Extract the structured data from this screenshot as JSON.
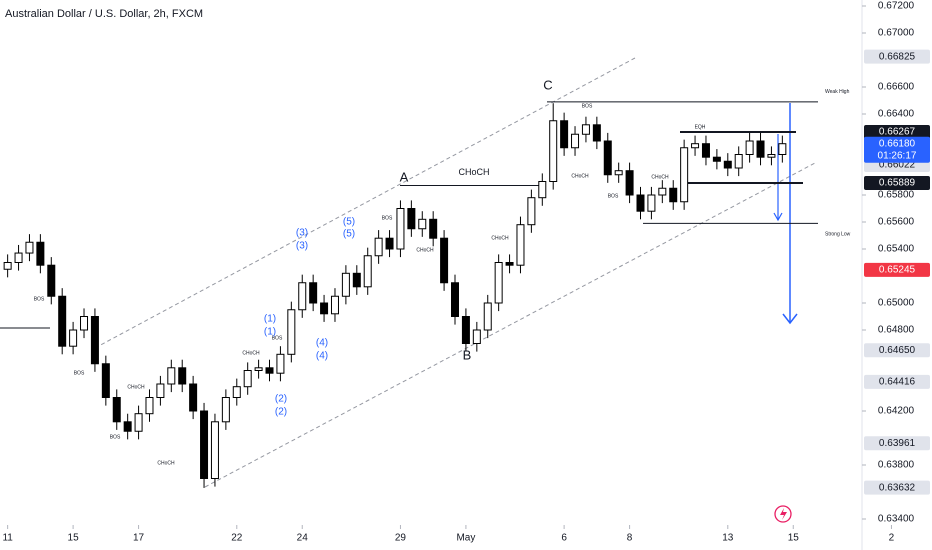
{
  "chart_data": {
    "type": "candlestick",
    "title": "Australian Dollar / U.S. Dollar, 2h, FXCM",
    "open": [
      0.6525,
      0.653,
      0.6537,
      0.6545,
      0.6528,
      0.6505,
      0.6468,
      0.648,
      0.649,
      0.6455,
      0.643,
      0.6412,
      0.6405,
      0.6418,
      0.643,
      0.644,
      0.6452,
      0.644,
      0.642,
      0.637,
      0.6412,
      0.643,
      0.6438,
      0.645,
      0.6452,
      0.6448,
      0.6462,
      0.6495,
      0.6515,
      0.65,
      0.6492,
      0.6505,
      0.6522,
      0.6512,
      0.6535,
      0.6548,
      0.654,
      0.657,
      0.6555,
      0.6562,
      0.6548,
      0.6515,
      0.649,
      0.647,
      0.648,
      0.65,
      0.653,
      0.6528,
      0.6558,
      0.6578,
      0.659,
      0.6635,
      0.6615,
      0.6625,
      0.6632,
      0.662,
      0.6595,
      0.6598,
      0.658,
      0.6568,
      0.658,
      0.6585,
      0.6575,
      0.6615,
      0.6618,
      0.6608,
      0.6605,
      0.66,
      0.661,
      0.662,
      0.6608,
      0.661
    ],
    "high": [
      0.6536,
      0.6543,
      0.6551,
      0.6551,
      0.6534,
      0.6511,
      0.6486,
      0.6496,
      0.6496,
      0.6461,
      0.6436,
      0.6418,
      0.6424,
      0.6436,
      0.6446,
      0.6458,
      0.6458,
      0.6446,
      0.6426,
      0.6418,
      0.6436,
      0.6444,
      0.6456,
      0.6458,
      0.6458,
      0.6468,
      0.6501,
      0.6521,
      0.6521,
      0.6506,
      0.6511,
      0.6528,
      0.6528,
      0.6541,
      0.6554,
      0.6554,
      0.6576,
      0.6576,
      0.6568,
      0.6568,
      0.6554,
      0.6521,
      0.6496,
      0.6486,
      0.6506,
      0.6536,
      0.6536,
      0.6564,
      0.6584,
      0.6596,
      0.6648,
      0.6641,
      0.6631,
      0.6638,
      0.6638,
      0.6626,
      0.6604,
      0.6604,
      0.6586,
      0.6586,
      0.6591,
      0.6591,
      0.6621,
      0.6624,
      0.6624,
      0.6614,
      0.6611,
      0.6616,
      0.6626,
      0.6626,
      0.6616,
      0.6624
    ],
    "low": [
      0.6519,
      0.6524,
      0.6531,
      0.6522,
      0.6499,
      0.6462,
      0.6462,
      0.6474,
      0.6449,
      0.6424,
      0.6406,
      0.6399,
      0.6399,
      0.6412,
      0.6424,
      0.6434,
      0.6434,
      0.6414,
      0.6363,
      0.6364,
      0.6406,
      0.6424,
      0.6432,
      0.6444,
      0.6442,
      0.6442,
      0.6456,
      0.6489,
      0.6494,
      0.6486,
      0.6486,
      0.6499,
      0.6506,
      0.6506,
      0.6529,
      0.6534,
      0.6534,
      0.6549,
      0.6549,
      0.6542,
      0.6509,
      0.6484,
      0.6464,
      0.6464,
      0.6474,
      0.6494,
      0.6522,
      0.6522,
      0.6552,
      0.6572,
      0.6584,
      0.6609,
      0.6609,
      0.6619,
      0.6614,
      0.6589,
      0.6589,
      0.6574,
      0.6562,
      0.6562,
      0.6574,
      0.6569,
      0.6569,
      0.6609,
      0.6602,
      0.6599,
      0.6594,
      0.6594,
      0.6604,
      0.6602,
      0.6602,
      0.6604
    ],
    "close": [
      0.653,
      0.6537,
      0.6545,
      0.6528,
      0.6505,
      0.6468,
      0.648,
      0.649,
      0.6455,
      0.643,
      0.6412,
      0.6405,
      0.6418,
      0.643,
      0.644,
      0.6452,
      0.644,
      0.642,
      0.637,
      0.6412,
      0.643,
      0.6438,
      0.645,
      0.6452,
      0.6448,
      0.6462,
      0.6495,
      0.6515,
      0.65,
      0.6492,
      0.6505,
      0.6522,
      0.6512,
      0.6535,
      0.6548,
      0.654,
      0.657,
      0.6555,
      0.6562,
      0.6548,
      0.6515,
      0.649,
      0.647,
      0.648,
      0.65,
      0.653,
      0.6528,
      0.6558,
      0.6578,
      0.659,
      0.6635,
      0.6615,
      0.6625,
      0.6632,
      0.662,
      0.6595,
      0.6598,
      0.658,
      0.6568,
      0.658,
      0.6585,
      0.6575,
      0.6615,
      0.6618,
      0.6608,
      0.6605,
      0.66,
      0.661,
      0.662,
      0.6608,
      0.661,
      0.6618
    ],
    "up_color": "#ffffff",
    "down_color": "#000000",
    "xlim": [
      -0.7,
      78.3
    ],
    "xticks": [
      {
        "value": 0,
        "label": "11"
      },
      {
        "value": 6,
        "label": "15"
      },
      {
        "value": 12,
        "label": "17"
      },
      {
        "value": 21,
        "label": "22"
      },
      {
        "value": 27,
        "label": "24"
      },
      {
        "value": 36,
        "label": "29"
      },
      {
        "value": 42,
        "label": "May"
      },
      {
        "value": 51,
        "label": "6"
      },
      {
        "value": 57,
        "label": "8"
      },
      {
        "value": 66,
        "label": "13"
      },
      {
        "value": 72,
        "label": "15"
      },
      {
        "value": 81,
        "label": "2"
      }
    ],
    "ylim": [
      0.634,
      0.672
    ],
    "yticks": [
      {
        "value": 0.672,
        "label": "0.67200"
      },
      {
        "value": 0.67,
        "label": "0.67000"
      },
      {
        "value": 0.666,
        "label": "0.66600"
      },
      {
        "value": 0.664,
        "label": "0.66400"
      },
      {
        "value": 0.658,
        "label": "0.65800"
      },
      {
        "value": 0.656,
        "label": "0.65600"
      },
      {
        "value": 0.654,
        "label": "0.65400"
      },
      {
        "value": 0.65,
        "label": "0.65000"
      },
      {
        "value": 0.648,
        "label": "0.64800"
      },
      {
        "value": 0.642,
        "label": "0.64200"
      },
      {
        "value": 0.638,
        "label": "0.63800"
      },
      {
        "value": 0.634,
        "label": "0.63400"
      }
    ],
    "grid": false,
    "price_labels": [
      {
        "value": 0.66825,
        "label": "0.66825",
        "color": "#e0e3eb"
      },
      {
        "value": 0.66022,
        "label": "0.66022",
        "color": "#e0e3eb"
      },
      {
        "value": 0.66267,
        "label": "0.66267",
        "color": "#131722"
      },
      {
        "value": 0.6618,
        "label": "0.66180",
        "color": "#2962ff",
        "countdown": "01:26:17"
      },
      {
        "value": 0.65889,
        "label": "0.65889",
        "color": "#131722"
      },
      {
        "value": 0.65245,
        "label": "0.65245",
        "color": "#f23645"
      },
      {
        "value": 0.6465,
        "label": "0.64650",
        "color": "#e0e3eb"
      },
      {
        "value": 0.64416,
        "label": "0.64416",
        "color": "#e0e3eb"
      },
      {
        "value": 0.63961,
        "label": "0.63961",
        "color": "#e0e3eb"
      },
      {
        "value": 0.63632,
        "label": "0.63632",
        "color": "#e0e3eb"
      }
    ],
    "levels": [
      {
        "name": "Weak High",
        "value": 0.6649
      },
      {
        "name": "Strong Low",
        "value": 0.6559
      },
      {
        "name": "EQH",
        "value": 0.66267
      },
      {
        "value": 0.65889
      },
      {
        "name": "CHoCH",
        "value": 0.6587
      }
    ],
    "annotations": [
      "A",
      "B",
      "C",
      "BOS",
      "BOS",
      "BOS",
      "BOS",
      "BOS",
      "BOS",
      "BOS",
      "CHoCH",
      "CHoCH",
      "CHoCH",
      "CHoCH",
      "CHoCH",
      "CHoCH",
      "CHoCH",
      "(1)",
      "(1)",
      "(2)",
      "(2)",
      "(3)",
      "(3)",
      "(4)",
      "(4)",
      "(5)",
      "(5)"
    ]
  }
}
